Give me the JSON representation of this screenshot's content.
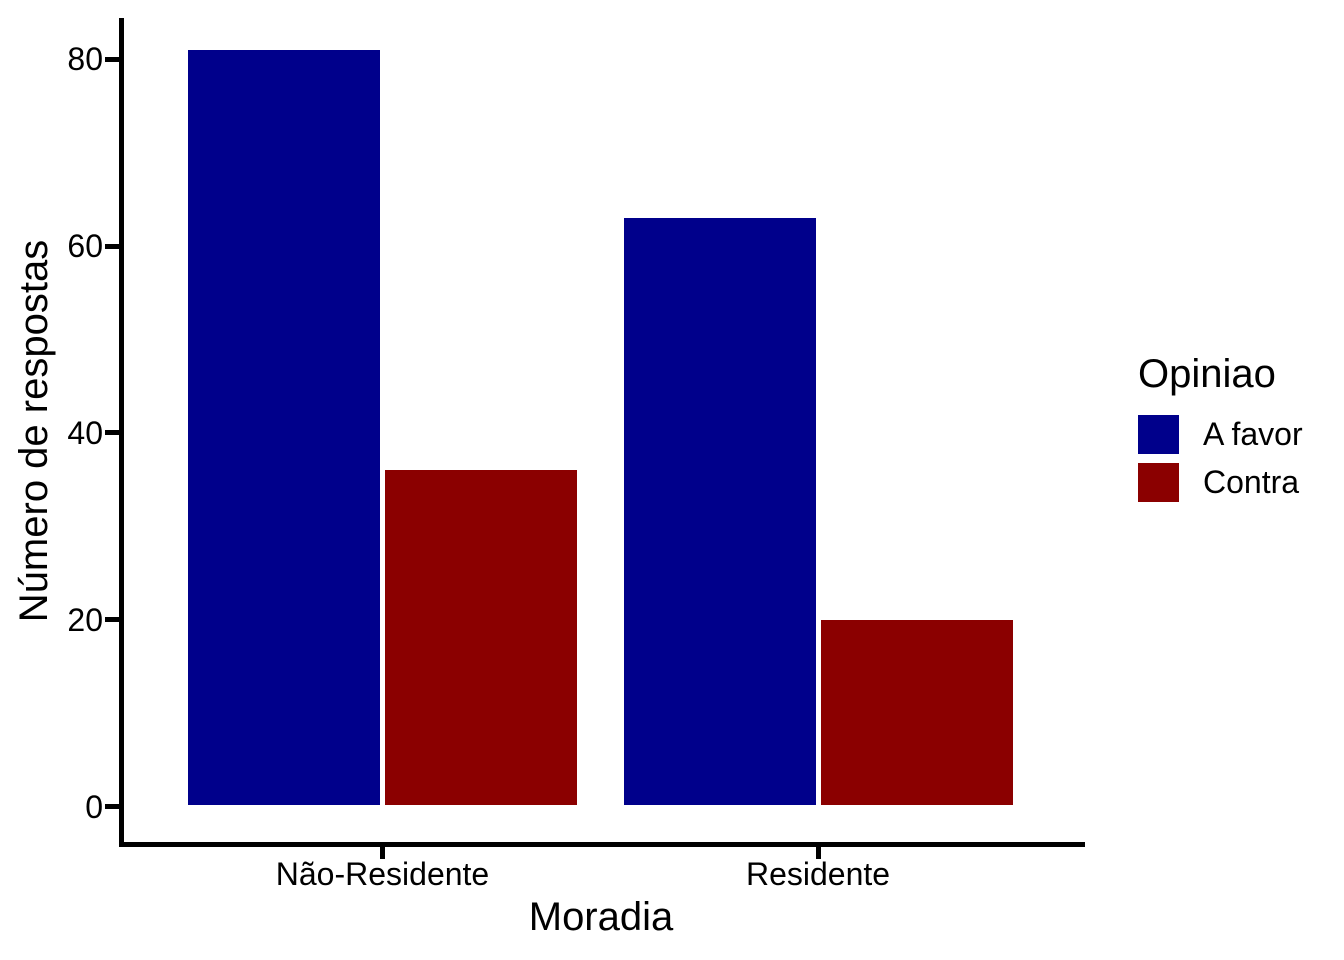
{
  "chart_data": {
    "type": "bar",
    "categories": [
      "Não-Residente",
      "Residente"
    ],
    "series": [
      {
        "name": "A favor",
        "color": "#00008B",
        "values": [
          81,
          63
        ]
      },
      {
        "name": "Contra",
        "color": "#8B0000",
        "values": [
          36,
          20
        ]
      }
    ],
    "title": "",
    "xlabel": "Moradia",
    "ylabel": "Número de respostas",
    "ylim": [
      0,
      85
    ],
    "yticks": [
      0,
      20,
      40,
      60,
      80
    ],
    "grid": false,
    "legend": {
      "title": "Opiniao",
      "position": "right"
    },
    "axis_color": "#000000",
    "background_color": "#ffffff"
  }
}
